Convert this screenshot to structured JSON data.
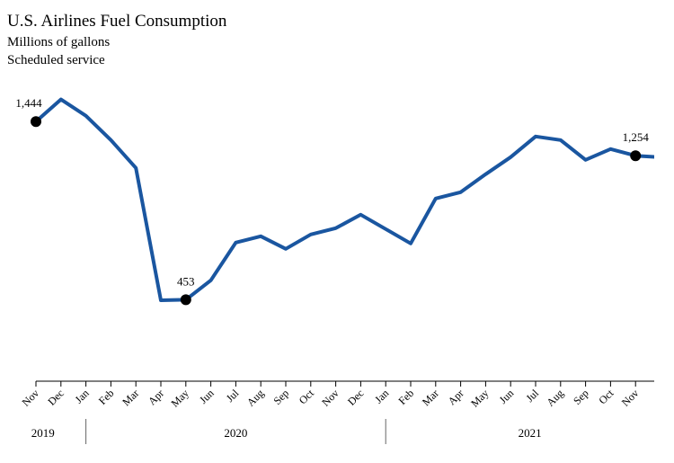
{
  "chart_data": {
    "type": "line",
    "title": "U.S. Airlines Fuel Consumption",
    "subtitle": [
      "Millions of gallons",
      "Scheduled service"
    ],
    "categories": [
      "Nov",
      "Dec",
      "Jan",
      "Feb",
      "Mar",
      "Apr",
      "May",
      "Jun",
      "Jul",
      "Aug",
      "Sep",
      "Oct",
      "Nov",
      "Dec",
      "Jan",
      "Feb",
      "Mar",
      "Apr",
      "May",
      "Jun",
      "Jul",
      "Aug",
      "Sep",
      "Oct",
      "Nov",
      null
    ],
    "years": [
      "2019",
      "2020",
      "2021"
    ],
    "series": [
      {
        "color": "#1a56a0",
        "values": [
          1444,
          1567,
          1476,
          1341,
          1186,
          450,
          453,
          561,
          771,
          806,
          736,
          816,
          851,
          926,
          846,
          766,
          1016,
          1051,
          1151,
          1246,
          1361,
          1341,
          1231,
          1291,
          1254,
          1245
        ],
        "value_labels": [
          "1,444",
          null,
          null,
          null,
          null,
          null,
          "453",
          null,
          null,
          null,
          null,
          null,
          null,
          null,
          null,
          null,
          null,
          null,
          null,
          null,
          null,
          null,
          null,
          null,
          "1,254",
          null
        ]
      }
    ],
    "ylim": [
      0,
      1620
    ]
  }
}
